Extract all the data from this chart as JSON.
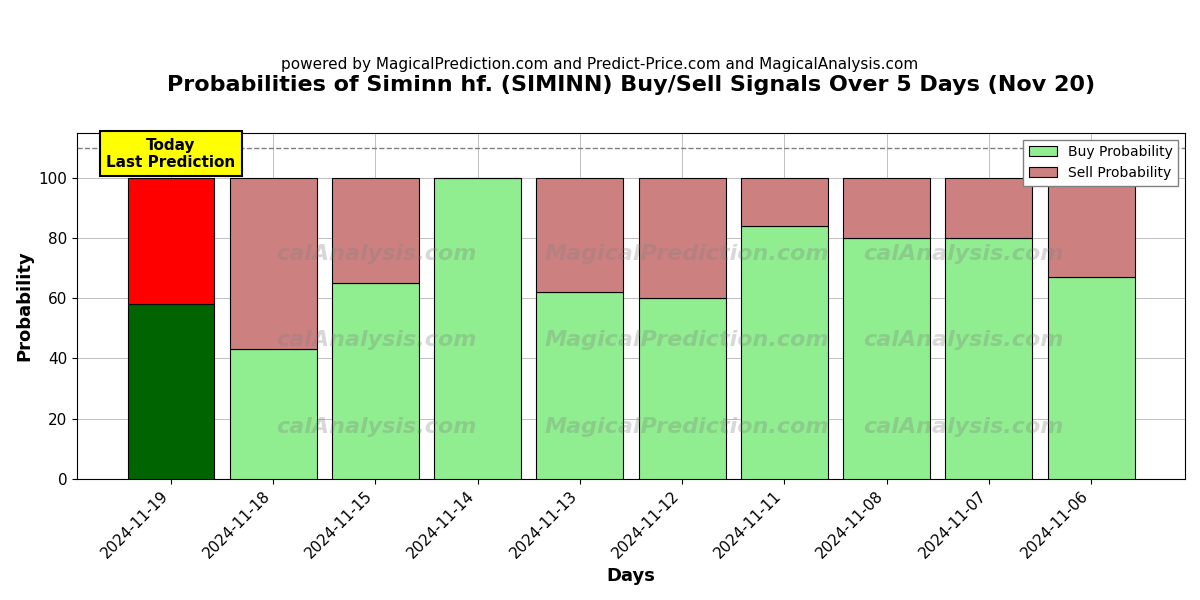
{
  "title": "Probabilities of Siminn hf. (SIMINN) Buy/Sell Signals Over 5 Days (Nov 20)",
  "subtitle": "powered by MagicalPrediction.com and Predict-Price.com and MagicalAnalysis.com",
  "xlabel": "Days",
  "ylabel": "Probability",
  "dates": [
    "2024-11-19",
    "2024-11-18",
    "2024-11-15",
    "2024-11-14",
    "2024-11-13",
    "2024-11-12",
    "2024-11-11",
    "2024-11-08",
    "2024-11-07",
    "2024-11-06"
  ],
  "buy_values": [
    58,
    43,
    65,
    100,
    62,
    60,
    84,
    80,
    80,
    67
  ],
  "sell_values": [
    42,
    57,
    35,
    0,
    38,
    40,
    16,
    20,
    20,
    33
  ],
  "today_bar_buy_color": "#006400",
  "today_bar_sell_color": "#FF0000",
  "other_bar_buy_color": "#90EE90",
  "other_bar_sell_color": "#CD8080",
  "legend_buy_color": "#90EE90",
  "legend_sell_color": "#CD8080",
  "today_label_bg": "#FFFF00",
  "today_label_text": "Today\nLast Prediction",
  "dashed_line_y": 110,
  "ylim": [
    0,
    115
  ],
  "bar_width": 0.85,
  "title_fontsize": 16,
  "subtitle_fontsize": 11,
  "axis_label_fontsize": 13,
  "tick_fontsize": 11
}
